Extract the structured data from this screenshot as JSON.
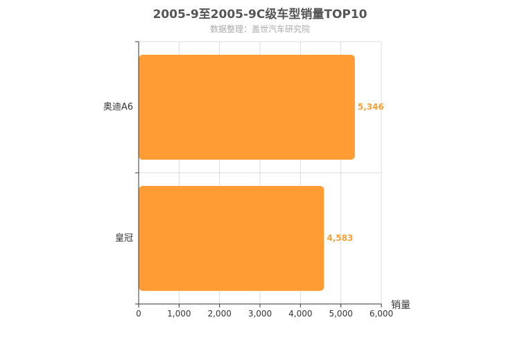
{
  "chart_data": {
    "type": "bar",
    "orientation": "horizontal",
    "title": "2005-9至2005-9C级车型销量TOP10",
    "subtitle": "数据整理：盖世汽车研究院",
    "categories": [
      "奥迪A6",
      "皇冠"
    ],
    "values": [
      5346,
      4583
    ],
    "value_labels": [
      "5,346",
      "4,583"
    ],
    "xlabel": "销量",
    "xlim": [
      0,
      6000
    ],
    "xticks": [
      0,
      1000,
      2000,
      3000,
      4000,
      5000,
      6000
    ],
    "xtick_labels": [
      "0",
      "1,000",
      "2,000",
      "3,000",
      "4,000",
      "5,000",
      "6,000"
    ],
    "grid": true,
    "bar_color": "#ff9c33",
    "label_color": "#f5a138"
  }
}
